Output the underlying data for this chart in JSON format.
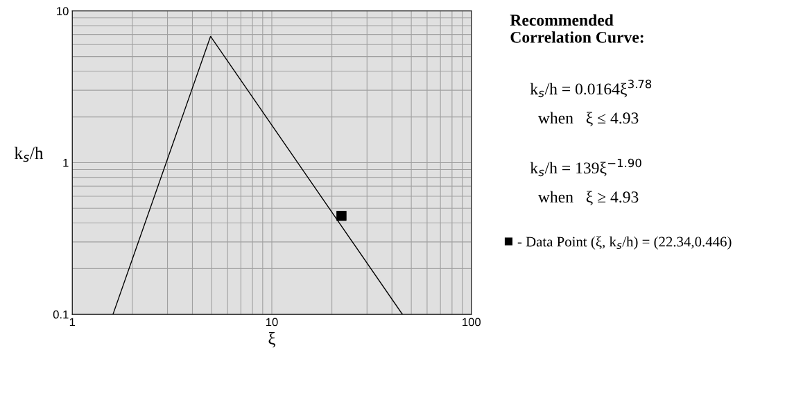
{
  "chart_data": {
    "type": "line",
    "title": "Recommended\nCorrelation Curve:",
    "xlabel": "ξ",
    "ylabel": "k$_{s}$/h",
    "log": "xy",
    "grid": true,
    "legend": "right",
    "xlim": [
      1,
      100
    ],
    "ylim": [
      0.1,
      10
    ],
    "xticks": [
      1,
      {
        "value": 2,
        "label": null
      },
      {
        "value": 3,
        "label": null
      },
      {
        "value": 4,
        "label": null
      },
      {
        "value": 5,
        "label": null
      },
      {
        "value": 6,
        "label": null
      },
      {
        "value": 7,
        "label": null
      },
      {
        "value": 8,
        "label": null
      },
      {
        "value": 9,
        "label": null
      },
      10,
      {
        "value": 20,
        "label": null
      },
      {
        "value": 30,
        "label": null
      },
      {
        "value": 40,
        "label": null
      },
      {
        "value": 50,
        "label": null
      },
      {
        "value": 60,
        "label": null
      },
      {
        "value": 70,
        "label": null
      },
      {
        "value": 80,
        "label": null
      },
      {
        "value": 90,
        "label": null
      },
      100
    ],
    "yticks": [
      0.1,
      {
        "value": 0.2,
        "label": null
      },
      {
        "value": 0.3,
        "label": null
      },
      {
        "value": 0.4,
        "label": null
      },
      {
        "value": 0.5,
        "label": null
      },
      {
        "value": 0.6,
        "label": null
      },
      {
        "value": 0.7,
        "label": null
      },
      {
        "value": 0.8,
        "label": null
      },
      {
        "value": 0.9,
        "label": null
      },
      1,
      {
        "value": 2,
        "label": null
      },
      {
        "value": 3,
        "label": null
      },
      {
        "value": 4,
        "label": null
      },
      {
        "value": 5,
        "label": null
      },
      {
        "value": 6,
        "label": null
      },
      {
        "value": 7,
        "label": null
      },
      {
        "value": 8,
        "label": null
      },
      {
        "value": 9,
        "label": null
      },
      10
    ],
    "series": [
      {
        "color": "#000000",
        "x": [
          1.6,
          4.93,
          45.1
        ],
        "values": [
          0.1,
          6.8,
          0.1
        ],
        "marker": "none"
      },
      {
        "type": "scatter",
        "name": "- Data Point (ξ, k$_{s}$/h) = (22.34,0.446)",
        "color": "#000000",
        "x": [
          22.34
        ],
        "values": [
          0.446
        ],
        "marker": "square"
      }
    ],
    "annotations": [
      "k$_{s}$/h = 0.0164ξ$^{3.78}$",
      "when   ξ ≤ 4.93",
      "k$_{s}$/h = 139ξ$^{−1.90}$",
      "when   ξ ≥ 4.93"
    ]
  }
}
